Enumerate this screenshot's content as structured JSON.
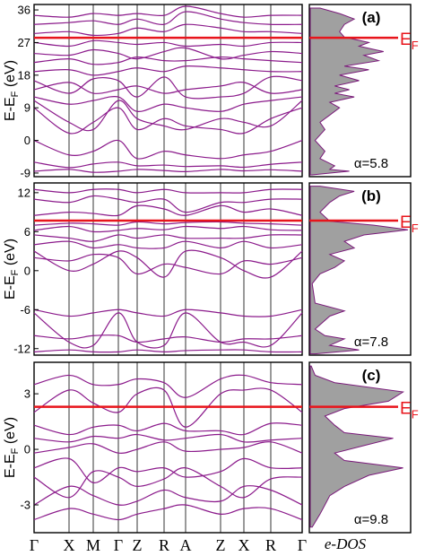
{
  "chart_data": {
    "type": "band-structure",
    "kpath": [
      "Γ",
      "X",
      "M",
      "Γ",
      "Z",
      "R",
      "A",
      "Z",
      "X",
      "R",
      "Γ"
    ],
    "dos_label": "e-DOS",
    "fermi_label": "E",
    "fermi_sub": "F",
    "ylabel": {
      "main": "E-E",
      "sub": "F",
      "unit": " (eV)"
    },
    "colors": {
      "bands": "#8b1a8b",
      "fermi": "#e8141b",
      "dos_fill": "#a0a0a0",
      "dos_line": "#7a1a7a"
    },
    "panels": [
      {
        "label": "(a)",
        "alpha": "α=5.8",
        "ylim": [
          -10,
          37.5
        ],
        "yticks": [
          36,
          27,
          18,
          9,
          0,
          -9
        ],
        "fermi_y": 28.3,
        "bands": [
          [
            -8.5,
            -8.0,
            -8.8,
            -8.5,
            -8.0,
            -8.3,
            -8.6,
            -8.0,
            -8.4,
            -8.1,
            -8.5
          ],
          [
            -6,
            -7.5,
            -6.5,
            -6,
            -7,
            -6.8,
            -7.2,
            -7,
            -7.4,
            -6.6,
            -6
          ],
          [
            0,
            -4,
            -3,
            0,
            -5,
            -3,
            -4,
            -5,
            -4,
            -3,
            0
          ],
          [
            9,
            2,
            5,
            9,
            3,
            6,
            4,
            3,
            2,
            6,
            9
          ],
          [
            11,
            5,
            3,
            11,
            6,
            4,
            3,
            6,
            5,
            4,
            11
          ],
          [
            12,
            10,
            11,
            12,
            8,
            10,
            9,
            8,
            10,
            11,
            12
          ],
          [
            14,
            16,
            13,
            14,
            15,
            13,
            14,
            15,
            16,
            13,
            14
          ],
          [
            16.5,
            13,
            17,
            16.5,
            12,
            17.5,
            12,
            12,
            13,
            17.5,
            16.5
          ],
          [
            19,
            19.5,
            18,
            19,
            20,
            19,
            20.5,
            20,
            19.5,
            19,
            19
          ],
          [
            21.5,
            22.5,
            21,
            21.5,
            23,
            22,
            22,
            23,
            22.5,
            22,
            21.5
          ],
          [
            24,
            23.5,
            25,
            24,
            22.5,
            24.5,
            25.5,
            22.5,
            23.5,
            24.5,
            24
          ],
          [
            27,
            26,
            27.5,
            27,
            26.5,
            27,
            26,
            26.5,
            26,
            27,
            27
          ],
          [
            29.5,
            30,
            29,
            29.5,
            31,
            30,
            32,
            31,
            30,
            30,
            29.5
          ],
          [
            32,
            32.5,
            33,
            32,
            33.5,
            32,
            35.5,
            33.5,
            32.5,
            32,
            32
          ],
          [
            34.5,
            34,
            35,
            34.5,
            35,
            34.5,
            37,
            35,
            34,
            34.5,
            34.5
          ]
        ],
        "dos": [
          [
            -9.5,
            0.02
          ],
          [
            -8.5,
            0.4
          ],
          [
            -8,
            0.2
          ],
          [
            -7,
            0.25
          ],
          [
            -5,
            0.1
          ],
          [
            -3,
            0.15
          ],
          [
            0,
            0.05
          ],
          [
            3,
            0.15
          ],
          [
            5,
            0.1
          ],
          [
            7,
            0.2
          ],
          [
            9,
            0.3
          ],
          [
            10.5,
            0.2
          ],
          [
            12,
            0.45
          ],
          [
            13,
            0.25
          ],
          [
            14,
            0.4
          ],
          [
            15,
            0.25
          ],
          [
            16.5,
            0.5
          ],
          [
            18,
            0.3
          ],
          [
            19.5,
            0.6
          ],
          [
            20.5,
            0.35
          ],
          [
            22,
            0.7
          ],
          [
            23.5,
            0.55
          ],
          [
            24.5,
            0.75
          ],
          [
            26,
            0.5
          ],
          [
            27,
            0.6
          ],
          [
            28.5,
            0.35
          ],
          [
            30,
            0.3
          ],
          [
            32,
            0.35
          ],
          [
            33.5,
            0.45
          ],
          [
            35,
            0.3
          ],
          [
            36.5,
            0.1
          ]
        ]
      },
      {
        "label": "(b)",
        "alpha": "α=7.8",
        "ylim": [
          -13,
          13.5
        ],
        "yticks": [
          12,
          6,
          0,
          -6,
          -12
        ],
        "fermi_y": 7.7,
        "bands": [
          [
            -12.5,
            -12.2,
            -12.5,
            -12.5,
            -12.2,
            -12.5,
            -12.3,
            -12.2,
            -12.2,
            -12.5,
            -12.5
          ],
          [
            -10,
            -10.5,
            -10,
            -10,
            -11,
            -10.5,
            -10.2,
            -11,
            -10.5,
            -10.5,
            -10
          ],
          [
            -6.5,
            -11,
            -11.5,
            -6.5,
            -11,
            -11.5,
            -6.5,
            -11,
            -11,
            -11.5,
            -6.5
          ],
          [
            -6,
            -7,
            -6.5,
            -6,
            -6.5,
            -7,
            -6,
            -6.5,
            -7,
            -7,
            -6
          ],
          [
            2,
            1.5,
            2.5,
            2,
            -0.5,
            1,
            0.5,
            -0.5,
            1.5,
            1,
            2
          ],
          [
            3,
            0,
            1,
            3,
            2,
            -1,
            3,
            2,
            0,
            -1,
            3
          ],
          [
            4,
            4.5,
            3.5,
            4,
            3.5,
            3.5,
            4.5,
            3.5,
            4.5,
            3.5,
            4
          ],
          [
            5.5,
            5,
            4.5,
            5.5,
            5,
            5.5,
            5,
            5,
            5,
            5.5,
            5.5
          ],
          [
            6.2,
            6.8,
            6.0,
            6.2,
            6.5,
            6.3,
            6.8,
            6.5,
            6.8,
            6.3,
            6.2
          ],
          [
            7.0,
            7.3,
            7.2,
            7.0,
            7.5,
            7.2,
            7.4,
            7.5,
            7.3,
            7.2,
            7.0
          ],
          [
            8.5,
            9,
            8.8,
            8.5,
            10,
            9.5,
            8.5,
            10,
            9,
            9.5,
            8.5
          ],
          [
            11,
            10.5,
            11.5,
            11,
            10.5,
            11,
            9,
            10.5,
            10.5,
            11,
            11
          ],
          [
            12.5,
            12,
            12.5,
            12.5,
            12,
            12.5,
            12,
            12,
            12,
            12.5,
            12.5
          ]
        ],
        "dos": [
          [
            -12.8,
            0.05
          ],
          [
            -12.2,
            0.5
          ],
          [
            -11.5,
            0.2
          ],
          [
            -10.5,
            0.35
          ],
          [
            -10,
            0.15
          ],
          [
            -9,
            0.05
          ],
          [
            -7,
            0.2
          ],
          [
            -6.2,
            0.35
          ],
          [
            -5,
            0.05
          ],
          [
            -2,
            0.02
          ],
          [
            -0.5,
            0.1
          ],
          [
            0.5,
            0.25
          ],
          [
            1.5,
            0.35
          ],
          [
            2.5,
            0.2
          ],
          [
            3.5,
            0.45
          ],
          [
            4.5,
            0.35
          ],
          [
            5.5,
            0.55
          ],
          [
            6.3,
            1.0
          ],
          [
            7.0,
            0.65
          ],
          [
            7.6,
            0.2
          ],
          [
            9,
            0.1
          ],
          [
            10.5,
            0.2
          ],
          [
            11.5,
            0.3
          ],
          [
            12.2,
            0.45
          ],
          [
            13,
            0.1
          ]
        ]
      },
      {
        "label": "(c)",
        "alpha": "α=9.8",
        "ylim": [
          -4.5,
          4.7
        ],
        "yticks": [
          3,
          0,
          -3
        ],
        "fermi_y": 2.3,
        "bands": [
          [
            -3.8,
            -3.2,
            -3.5,
            -3.8,
            -3.5,
            -3.2,
            -3.0,
            -3.5,
            -3.2,
            -3.2,
            -3.8
          ],
          [
            -3.0,
            -2.0,
            -2.5,
            -3.0,
            -2.8,
            -2.2,
            -2.6,
            -2.8,
            -2.0,
            -2.2,
            -3.0
          ],
          [
            -1.5,
            -2.6,
            -1.2,
            -1.5,
            -2.0,
            -1.6,
            -1.0,
            -2.0,
            -2.6,
            -1.6,
            -1.5
          ],
          [
            -1.0,
            -0.5,
            -1.8,
            -1.0,
            -1.2,
            -1.0,
            -1.5,
            -1.2,
            -0.5,
            -1.0,
            -1.0
          ],
          [
            -0.2,
            0.1,
            0.3,
            -0.2,
            0.0,
            0.4,
            -0.1,
            0.0,
            0.1,
            0.4,
            -0.2
          ],
          [
            0.6,
            0.4,
            0.7,
            0.6,
            0.8,
            0.5,
            0.6,
            0.8,
            0.4,
            0.5,
            0.6
          ],
          [
            1.3,
            0.8,
            1.2,
            1.3,
            1.0,
            1.4,
            1.0,
            1.0,
            0.8,
            1.4,
            1.3
          ],
          [
            2.0,
            3.2,
            2.5,
            2.0,
            3.0,
            3.2,
            1.2,
            3.0,
            3.2,
            3.2,
            2.0
          ],
          [
            3.5,
            4.0,
            3.5,
            3.5,
            3.8,
            3.6,
            2.8,
            3.8,
            4.0,
            3.6,
            3.5
          ]
        ],
        "dos": [
          [
            -4.2,
            0.02
          ],
          [
            -3.5,
            0.1
          ],
          [
            -3.0,
            0.15
          ],
          [
            -2.5,
            0.2
          ],
          [
            -2.0,
            0.35
          ],
          [
            -1.4,
            0.6
          ],
          [
            -1.0,
            0.95
          ],
          [
            -0.6,
            0.35
          ],
          [
            -0.2,
            0.25
          ],
          [
            0.2,
            0.55
          ],
          [
            0.6,
            0.85
          ],
          [
            0.9,
            0.35
          ],
          [
            1.3,
            0.25
          ],
          [
            1.8,
            0.15
          ],
          [
            2.2,
            0.35
          ],
          [
            2.6,
            0.8
          ],
          [
            3.1,
            0.95
          ],
          [
            3.6,
            0.25
          ],
          [
            4.0,
            0.05
          ],
          [
            4.5,
            0.01
          ]
        ]
      }
    ]
  }
}
